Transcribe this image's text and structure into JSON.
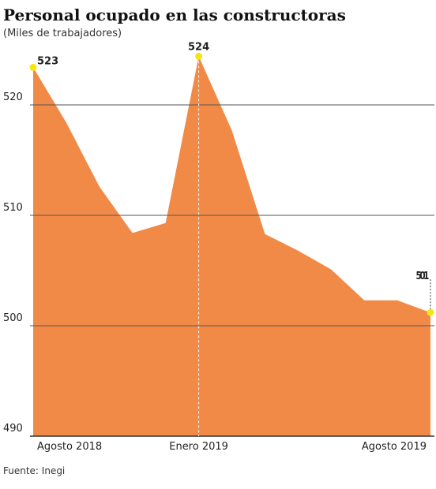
{
  "chart_data": {
    "type": "area",
    "title": "Personal ocupado en las constructoras",
    "subtitle": "(Miles de trabajadores)",
    "source": "Fuente: Inegi",
    "categories": [
      "Agosto 2018",
      null,
      null,
      null,
      null,
      "Enero 2019",
      null,
      null,
      null,
      null,
      null,
      null,
      "Agosto 2019"
    ],
    "values": [
      523.4,
      518.4,
      512.6,
      508.4,
      509.3,
      524.4,
      517.7,
      508.3,
      506.8,
      505.1,
      502.3,
      502.3,
      501.2
    ],
    "value_labels": [
      "523",
      null,
      null,
      null,
      null,
      "524",
      null,
      null,
      null,
      null,
      null,
      null,
      "501"
    ],
    "color": "#f28a47",
    "highlight_color": "#f5e516",
    "ylim": [
      490,
      525
    ],
    "yticks": [
      490,
      500,
      510,
      520
    ],
    "grid": true
  }
}
